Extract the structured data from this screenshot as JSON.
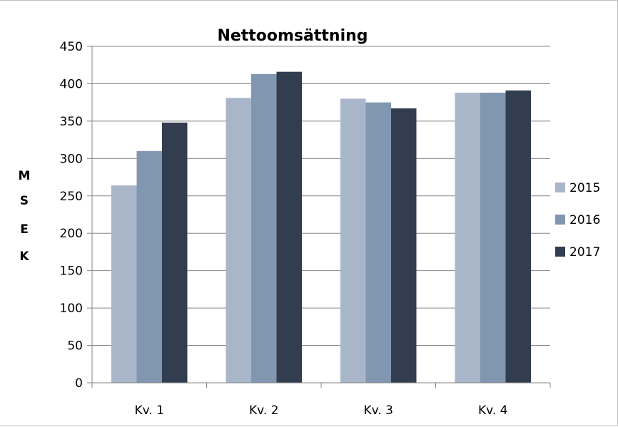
{
  "chart_data": {
    "type": "bar",
    "title": "Nettoomsättning",
    "xlabel": "",
    "ylabel": "MSEK",
    "ylabel_letters": [
      "M",
      "S",
      "E",
      "K"
    ],
    "categories": [
      "Kv. 1",
      "Kv. 2",
      "Kv. 3",
      "Kv. 4"
    ],
    "ylim": [
      0,
      450
    ],
    "yticks": [
      0,
      50,
      100,
      150,
      200,
      250,
      300,
      350,
      400,
      450
    ],
    "grid": true,
    "legend_position": "right",
    "series": [
      {
        "name": "2015",
        "color": "#a9b6ca",
        "values": [
          264,
          381,
          380,
          388
        ]
      },
      {
        "name": "2016",
        "color": "#8196b1",
        "values": [
          310,
          413,
          375,
          388
        ]
      },
      {
        "name": "2017",
        "color": "#333d50",
        "values": [
          348,
          416,
          367,
          391
        ]
      }
    ]
  }
}
